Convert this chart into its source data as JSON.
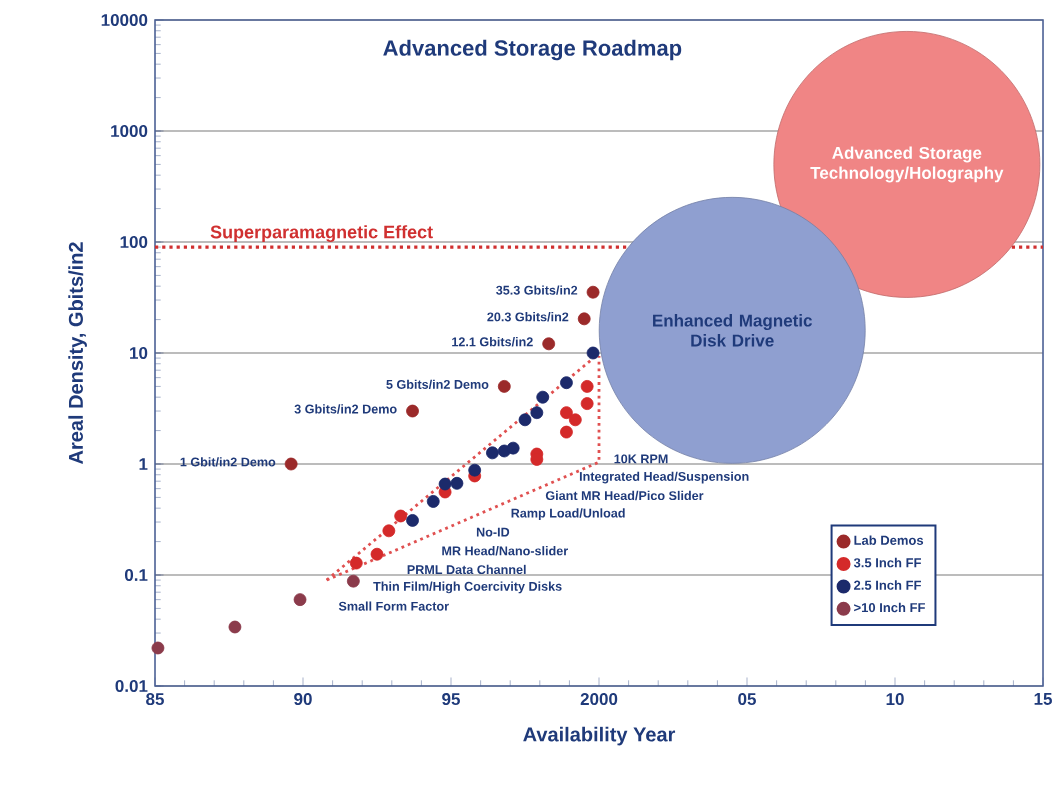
{
  "chart_data": {
    "type": "scatter",
    "title": "Advanced Storage Roadmap",
    "xlabel": "Availability Year",
    "ylabel": "Areal Density, Gbits/in2",
    "xlim": [
      1985,
      2015
    ],
    "ylim": [
      0.01,
      10000
    ],
    "log": "y",
    "xticks": [
      {
        "value": 1985,
        "label": "85"
      },
      {
        "value": 1990,
        "label": "90"
      },
      {
        "value": 1995,
        "label": "95"
      },
      2000,
      {
        "value": 2005,
        "label": "05"
      },
      {
        "value": 2010,
        "label": "10"
      },
      {
        "value": 2015,
        "label": "15"
      }
    ],
    "yticks": [
      0.01,
      0.1,
      1,
      10,
      100,
      1000,
      10000
    ],
    "grid": "y",
    "legend": "bottom right",
    "marker": "circle",
    "series": [
      {
        "name": "Advanced Storage Technology/Holography",
        "type": "bubble",
        "color": "#f08585",
        "x": [
          2010.4
        ],
        "values": [
          500
        ],
        "sizes": [
          1
        ]
      },
      {
        "name": "Enhanced Magnetic Disk Drive",
        "type": "bubble",
        "color": "#8f9fd0",
        "x": [
          2004.5
        ],
        "values": [
          16
        ],
        "sizes": [
          1
        ]
      },
      {
        "type": "line",
        "color": "#e05050",
        "line_style": "dotted",
        "marker": "none",
        "x": [
          1990.8,
          1999.9
        ],
        "values": [
          0.09,
          9.4
        ]
      },
      {
        "type": "line",
        "color": "#e05050",
        "line_style": "dotted",
        "marker": "none",
        "x": [
          1990.8,
          2000,
          2000
        ],
        "values": [
          0.09,
          1.04,
          9.4
        ]
      },
      {
        "name": "Lab Demos",
        "color": "#9b2a2a",
        "x": [
          1989.6,
          1993.7,
          1996.8,
          1998.3,
          1999.5,
          1999.8
        ],
        "values": [
          1,
          3,
          5,
          12.1,
          20.3,
          35.3
        ]
      },
      {
        "name": "3.5 Inch FF",
        "color": "#d42a2a",
        "x": [
          1991.8,
          1992.5,
          1992.9,
          1993.3,
          1994.8,
          1995.8,
          1997.9,
          1997.9,
          1998.9,
          1998.9,
          1999.2,
          1999.6,
          1999.6
        ],
        "values": [
          0.128,
          0.154,
          0.25,
          0.34,
          0.56,
          0.78,
          1.23,
          1.1,
          1.94,
          2.9,
          2.5,
          3.5,
          5
        ]
      },
      {
        "name": "2.5 Inch FF",
        "color": "#1c2a6b",
        "x": [
          1993.7,
          1994.4,
          1994.8,
          1995.2,
          1995.8,
          1996.4,
          1996.8,
          1997.1,
          1997.5,
          1997.9,
          1998.1,
          1998.9,
          1999.8
        ],
        "values": [
          0.31,
          0.46,
          0.66,
          0.67,
          0.88,
          1.26,
          1.31,
          1.39,
          2.5,
          2.9,
          4,
          5.4,
          10
        ]
      },
      {
        "name": ">10 Inch FF",
        "color": "#8b3b4b",
        "x": [
          1985.1,
          1987.7,
          1989.9,
          1991.7
        ],
        "values": [
          0.022,
          0.034,
          0.06,
          0.088
        ]
      }
    ],
    "ref_lines": [
      {
        "axis": "y",
        "value": 90,
        "label": "Superparamagnetic Effect",
        "color": "#d03030",
        "line_style": "dotted"
      }
    ],
    "annotations": [
      {
        "text": "1 Gbit/in2 Demo",
        "x": 1989.6,
        "y": 1
      },
      {
        "text": "3 Gbits/in2 Demo",
        "x": 1993.7,
        "y": 3
      },
      {
        "text": "5 Gbits/in2 Demo",
        "x": 1996.8,
        "y": 5
      },
      {
        "text": "12.1 Gbits/in2",
        "x": 1998.3,
        "y": 12.1
      },
      {
        "text": "20.3 Gbits/in2",
        "x": 1999.5,
        "y": 20.3
      },
      {
        "text": "35.3 Gbits/in2",
        "x": 1999.8,
        "y": 35.3
      },
      "10K RPM",
      "Integrated Head/Suspension",
      "Giant MR Head/Pico Slider",
      "Ramp Load/Unload",
      "No-ID",
      "MR Head/Nano-slider",
      "PRML Data Channel",
      "Thin Film/High Coercivity Disks",
      "Small Form Factor"
    ]
  }
}
